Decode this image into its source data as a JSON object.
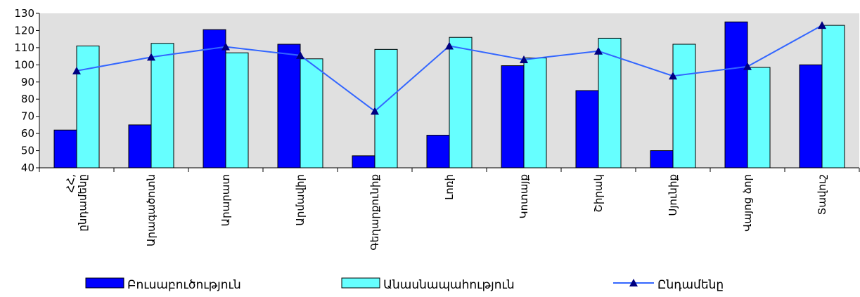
{
  "chart_data": {
    "type": "bar",
    "categories": [
      "ՀՀ, ընդամենը",
      "Արագածոտն",
      "Արարատ",
      "Արմավիր",
      "Գեղարքունիք",
      "Լոռի",
      "Կոտայք",
      "Շիրակ",
      "Սյունիք",
      "Վայոց ձոր",
      "Տավուշ"
    ],
    "series": [
      {
        "name": "Բուսաբուծություն",
        "type": "bar",
        "color": "#0000ff",
        "values": [
          62,
          65,
          120.5,
          112,
          47,
          59,
          99.5,
          85,
          50,
          125,
          100
        ]
      },
      {
        "name": "Անասնապահություն",
        "type": "bar",
        "color": "#66ffff",
        "values": [
          111,
          112.5,
          107,
          103.5,
          109,
          116,
          104,
          115.5,
          112,
          98.5,
          123
        ]
      },
      {
        "name": "Ընդամենը",
        "type": "line",
        "color": "#3366ff",
        "marker": "triangle",
        "marker_color": "#000080",
        "values": [
          96.5,
          104.5,
          110.5,
          105.5,
          73,
          111,
          103,
          108,
          93.5,
          99,
          123
        ]
      }
    ],
    "yticks": [
      40,
      50,
      60,
      70,
      80,
      90,
      100,
      110,
      120,
      130
    ],
    "ylim": [
      40,
      130
    ],
    "plot_background": "#e0e0e0",
    "legend_position": "bottom",
    "category_label_rotation": "vertical"
  }
}
